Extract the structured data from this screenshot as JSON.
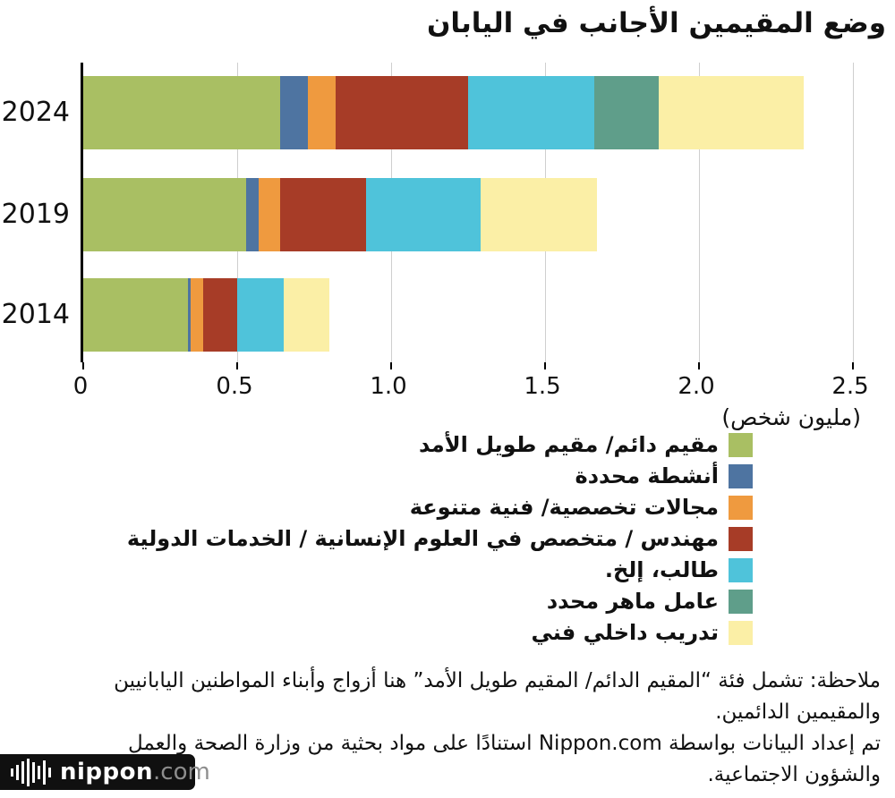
{
  "title": "وضع المقيمين الأجانب في اليابان",
  "chart_data": {
    "type": "bar",
    "orientation": "horizontal",
    "stacked": true,
    "grid": true,
    "legend_position": "bottom-right",
    "categories": [
      "2024",
      "2019",
      "2014"
    ],
    "series": [
      {
        "name": "مقيم دائم/ مقيم طويل الأمد",
        "color": "#a9bf63",
        "values": [
          0.64,
          0.53,
          0.34
        ]
      },
      {
        "name": "أنشطة محددة",
        "color": "#4e74a1",
        "values": [
          0.09,
          0.04,
          0.01
        ]
      },
      {
        "name": "مجالات تخصصية/ فنية متنوعة",
        "color": "#ef9a3f",
        "values": [
          0.09,
          0.07,
          0.04
        ]
      },
      {
        "name": "مهندس / متخصص في العلوم الإنسانية / الخدمات الدولية",
        "color": "#a73c27",
        "values": [
          0.43,
          0.28,
          0.11
        ]
      },
      {
        "name": "طالب، إلخ.",
        "color": "#4fc3da",
        "values": [
          0.41,
          0.37,
          0.15
        ]
      },
      {
        "name": "عامل ماهر محدد",
        "color": "#5f9e8a",
        "values": [
          0.21,
          0,
          0
        ]
      },
      {
        "name": "تدريب داخلي فني",
        "color": "#fbefa6",
        "values": [
          0.47,
          0.38,
          0.15
        ]
      }
    ],
    "xlabel": "(مليون شخص)",
    "xlim": [
      0,
      2.5
    ],
    "xticks": [
      "0",
      "0.5",
      "1.0",
      "1.5",
      "2.0",
      "2.5"
    ],
    "xtick_values": [
      0,
      0.5,
      1.0,
      1.5,
      2.0,
      2.5
    ]
  },
  "notes": {
    "note1": "ملاحظة: تشمل فئة “المقيم الدائم/ المقيم طويل الأمد” هنا أزواج وأبناء المواطنين اليابانيين والمقيمين الدائمين.",
    "note2": "تم إعداد البيانات بواسطة Nippon.com استنادًا على مواد بحثية من وزارة الصحة والعمل والشؤون الاجتماعية."
  },
  "logo": {
    "name": "nippon",
    "domain": ".com"
  }
}
